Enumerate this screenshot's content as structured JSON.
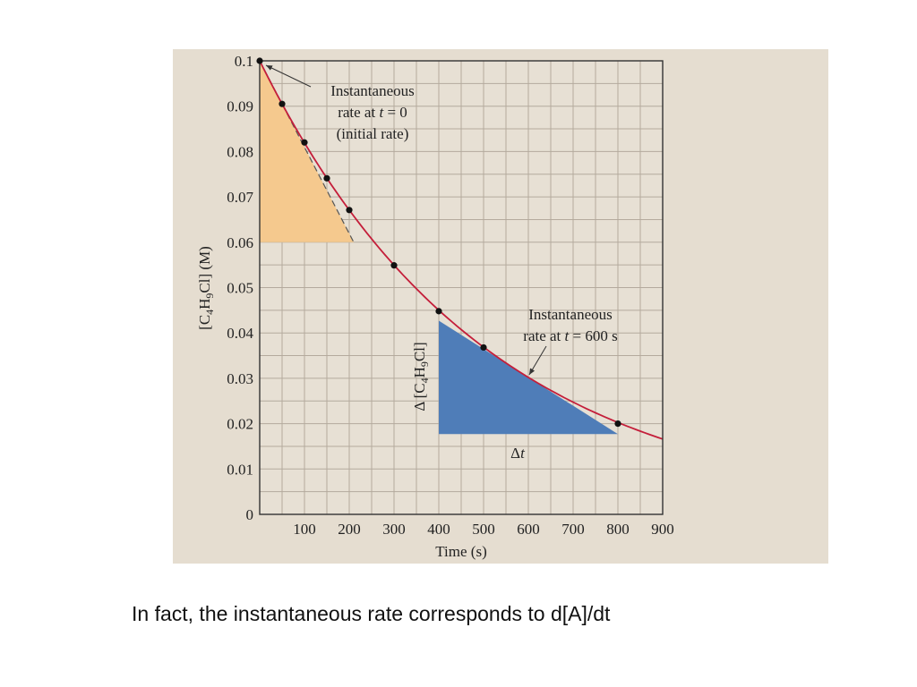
{
  "caption": "In fact, the instantaneous rate corresponds to d[A]/dt",
  "colors": {
    "panel": "#e5ddd0",
    "grid": "#b4aa9d",
    "curve": "#c41e3a",
    "initial_triangle": "#f5c98e",
    "triangle_600": "#4f7db8",
    "points": "#111111"
  },
  "chart_data": {
    "type": "line",
    "title": "",
    "xlabel": "Time (s)",
    "ylabel": "[C4H9Cl] (M)",
    "xlim": [
      0,
      900
    ],
    "ylim": [
      0,
      0.1
    ],
    "grid": true,
    "x_ticks": [
      "100",
      "200",
      "300",
      "400",
      "500",
      "600",
      "700",
      "800",
      "900"
    ],
    "y_ticks": [
      "0",
      "0.01",
      "0.02",
      "0.03",
      "0.04",
      "0.05",
      "0.06",
      "0.07",
      "0.08",
      "0.09",
      "0.1"
    ],
    "points": [
      {
        "x": 0,
        "y": 0.1
      },
      {
        "x": 50,
        "y": 0.0905
      },
      {
        "x": 100,
        "y": 0.082
      },
      {
        "x": 150,
        "y": 0.0741
      },
      {
        "x": 200,
        "y": 0.0671
      },
      {
        "x": 300,
        "y": 0.0549
      },
      {
        "x": 400,
        "y": 0.0448
      },
      {
        "x": 500,
        "y": 0.0368
      },
      {
        "x": 800,
        "y": 0.02
      }
    ],
    "curve": {
      "x_start": 0,
      "x_end": 900,
      "y_start": 0.1,
      "y_end": 0.0166
    },
    "tangent_initial": {
      "x1": 0,
      "y1": 0.1,
      "x2": 210,
      "y2": 0.06
    },
    "triangle_initial": {
      "vertices": [
        [
          0,
          0.1
        ],
        [
          0,
          0.06
        ],
        [
          210,
          0.06
        ]
      ]
    },
    "triangle_600": {
      "vertices": [
        [
          400,
          0.0427
        ],
        [
          400,
          0.0177
        ],
        [
          800,
          0.0177
        ]
      ]
    },
    "annotations": [
      {
        "lines": [
          "Instantaneous",
          "rate at t = 0",
          "(initial rate)"
        ]
      },
      {
        "lines": [
          "Instantaneous",
          "rate at t = 600 s"
        ]
      },
      {
        "text": "Δ [C4H9Cl]"
      },
      {
        "text": "Δt"
      }
    ]
  }
}
